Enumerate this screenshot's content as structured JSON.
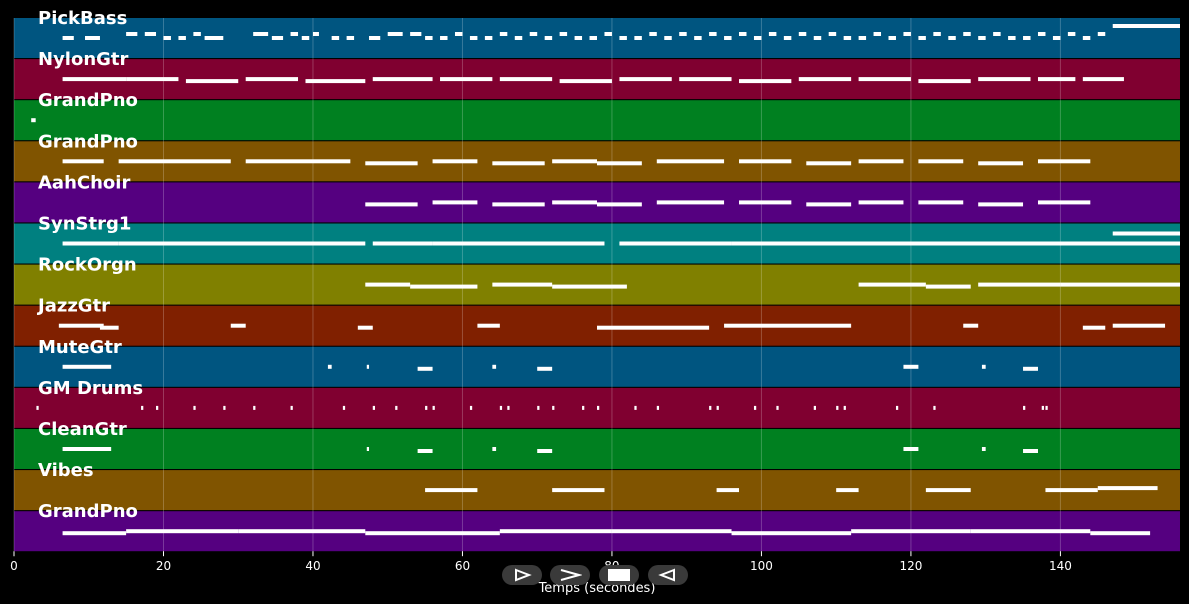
{
  "chart_data": {
    "type": "piano-roll",
    "xlabel": "Temps (secondes)",
    "xlim": [
      0,
      156
    ],
    "x_ticks": [
      0,
      20,
      40,
      60,
      80,
      100,
      120,
      140
    ],
    "grid": true,
    "tracks": [
      {
        "name": "PickBass",
        "color": "#005580",
        "notes": [
          [
            6.5,
            8,
            0.5
          ],
          [
            9.5,
            11.5,
            0.5
          ],
          [
            15,
            16.5,
            0.4
          ],
          [
            17.5,
            19,
            0.4
          ],
          [
            20,
            21,
            0.5
          ],
          [
            22,
            23,
            0.5
          ],
          [
            24,
            25,
            0.4
          ],
          [
            25.5,
            28,
            0.5
          ],
          [
            32,
            34,
            0.4
          ],
          [
            34.5,
            36,
            0.5
          ],
          [
            37,
            38,
            0.4
          ],
          [
            38.5,
            39.5,
            0.5
          ],
          [
            40,
            40.8,
            0.4
          ],
          [
            42.5,
            43.5,
            0.5
          ],
          [
            44.5,
            45.5,
            0.5
          ],
          [
            47.5,
            49,
            0.5
          ],
          [
            50,
            52,
            0.4
          ],
          [
            53,
            54.5,
            0.4
          ],
          [
            55,
            56,
            0.5
          ],
          [
            57,
            58,
            0.5
          ],
          [
            59,
            60,
            0.4
          ],
          [
            61,
            62,
            0.5
          ],
          [
            63,
            64,
            0.5
          ],
          [
            65,
            66,
            0.4
          ],
          [
            67,
            68,
            0.5
          ],
          [
            69,
            70,
            0.4
          ],
          [
            71,
            72,
            0.5
          ],
          [
            73,
            74,
            0.4
          ],
          [
            75,
            76,
            0.5
          ],
          [
            77,
            78,
            0.5
          ],
          [
            79,
            80,
            0.4
          ],
          [
            81,
            82,
            0.5
          ],
          [
            83,
            84,
            0.5
          ],
          [
            85,
            86,
            0.4
          ],
          [
            87,
            88,
            0.5
          ],
          [
            89,
            90,
            0.4
          ],
          [
            91,
            92,
            0.5
          ],
          [
            93,
            94,
            0.4
          ],
          [
            95,
            96,
            0.5
          ],
          [
            97,
            98,
            0.4
          ],
          [
            99,
            100,
            0.5
          ],
          [
            101,
            102,
            0.4
          ],
          [
            103,
            104,
            0.5
          ],
          [
            105,
            106,
            0.4
          ],
          [
            107,
            108,
            0.5
          ],
          [
            109,
            110,
            0.4
          ],
          [
            111,
            112,
            0.5
          ],
          [
            113,
            114,
            0.5
          ],
          [
            115,
            116,
            0.4
          ],
          [
            117,
            118,
            0.5
          ],
          [
            119,
            120,
            0.4
          ],
          [
            121,
            122,
            0.5
          ],
          [
            123,
            124,
            0.4
          ],
          [
            125,
            126,
            0.5
          ],
          [
            127,
            128,
            0.4
          ],
          [
            129,
            130,
            0.5
          ],
          [
            131,
            132,
            0.4
          ],
          [
            133,
            134,
            0.5
          ],
          [
            135,
            136,
            0.5
          ],
          [
            137,
            138,
            0.4
          ],
          [
            139,
            140,
            0.5
          ],
          [
            141,
            142,
            0.4
          ],
          [
            143,
            144,
            0.5
          ],
          [
            145,
            146,
            0.4
          ],
          [
            147,
            156,
            0.2
          ]
        ]
      },
      {
        "name": "NylonGtr",
        "color": "#800030",
        "notes": [
          [
            6.5,
            15,
            0.5
          ],
          [
            15,
            22,
            0.5
          ],
          [
            23,
            30,
            0.55
          ],
          [
            31,
            38,
            0.5
          ],
          [
            39,
            47,
            0.55
          ],
          [
            48,
            56,
            0.5
          ],
          [
            57,
            64,
            0.5
          ],
          [
            65,
            72,
            0.5
          ],
          [
            73,
            80,
            0.55
          ],
          [
            81,
            88,
            0.5
          ],
          [
            89,
            96,
            0.5
          ],
          [
            97,
            104,
            0.55
          ],
          [
            105,
            112,
            0.5
          ],
          [
            113,
            120,
            0.5
          ],
          [
            121,
            128,
            0.55
          ],
          [
            129,
            136,
            0.5
          ],
          [
            137,
            142,
            0.5
          ],
          [
            143,
            148.5,
            0.5
          ]
        ]
      },
      {
        "name": "GrandPno",
        "color": "#008020",
        "notes": [
          [
            2.3,
            2.9,
            0.5
          ]
        ]
      },
      {
        "name": "GrandPno",
        "color": "#805400",
        "notes": [
          [
            6.5,
            12,
            0.5
          ],
          [
            14,
            29,
            0.5
          ],
          [
            31,
            45,
            0.5
          ],
          [
            47,
            54,
            0.55
          ],
          [
            56,
            62,
            0.5
          ],
          [
            64,
            71,
            0.55
          ],
          [
            72,
            78,
            0.5
          ],
          [
            78,
            84,
            0.55
          ],
          [
            86,
            95,
            0.5
          ],
          [
            97,
            104,
            0.5
          ],
          [
            106,
            112,
            0.55
          ],
          [
            113,
            119,
            0.5
          ],
          [
            121,
            127,
            0.5
          ],
          [
            129,
            135,
            0.55
          ],
          [
            137,
            144,
            0.5
          ]
        ]
      },
      {
        "name": "AahChoir",
        "color": "#550080",
        "notes": [
          [
            47,
            54,
            0.55
          ],
          [
            56,
            62,
            0.5
          ],
          [
            64,
            71,
            0.55
          ],
          [
            72,
            78,
            0.5
          ],
          [
            78,
            84,
            0.55
          ],
          [
            86,
            95,
            0.5
          ],
          [
            97,
            104,
            0.5
          ],
          [
            106,
            112,
            0.55
          ],
          [
            113,
            119,
            0.5
          ],
          [
            121,
            127,
            0.5
          ],
          [
            129,
            135,
            0.55
          ],
          [
            137,
            144,
            0.5
          ]
        ]
      },
      {
        "name": "SynStrg1",
        "color": "#008080",
        "notes": [
          [
            6.5,
            14,
            0.5
          ],
          [
            14,
            47,
            0.5
          ],
          [
            48,
            56,
            0.5
          ],
          [
            56,
            79,
            0.5
          ],
          [
            81,
            96,
            0.5
          ],
          [
            96,
            156,
            0.5
          ],
          [
            147,
            156,
            0.25
          ]
        ]
      },
      {
        "name": "RockOrgn",
        "color": "#808000",
        "notes": [
          [
            47,
            53,
            0.5
          ],
          [
            53,
            62,
            0.55
          ],
          [
            64,
            72,
            0.5
          ],
          [
            72,
            82,
            0.55
          ],
          [
            113,
            122,
            0.5
          ],
          [
            122,
            128,
            0.55
          ],
          [
            129,
            140,
            0.5
          ],
          [
            140,
            156,
            0.5
          ]
        ]
      },
      {
        "name": "JazzGtr",
        "color": "#802000",
        "notes": [
          [
            6,
            12,
            0.5
          ],
          [
            11.5,
            14,
            0.55
          ],
          [
            29,
            31,
            0.5
          ],
          [
            46,
            48,
            0.55
          ],
          [
            62,
            65,
            0.5
          ],
          [
            78,
            93,
            0.55
          ],
          [
            95,
            112,
            0.5
          ],
          [
            127,
            129,
            0.5
          ],
          [
            143,
            146,
            0.55
          ],
          [
            147,
            154,
            0.5
          ]
        ]
      },
      {
        "name": "MuteGtr",
        "color": "#005580",
        "notes": [
          [
            6.5,
            13,
            0.5
          ],
          [
            42,
            42.5,
            0.5
          ],
          [
            47.2,
            47.5,
            0.5
          ],
          [
            54,
            56,
            0.55
          ],
          [
            64,
            64.5,
            0.5
          ],
          [
            70,
            72,
            0.55
          ],
          [
            119,
            121,
            0.5
          ],
          [
            129.5,
            130,
            0.5
          ],
          [
            135,
            137,
            0.55
          ]
        ]
      },
      {
        "name": "GM Drums",
        "color": "#800030",
        "notes": [
          [
            3,
            3.3,
            0.5
          ],
          [
            17,
            17.3,
            0.5
          ],
          [
            19,
            19.3,
            0.5
          ],
          [
            24,
            24.3,
            0.5
          ],
          [
            28,
            28.3,
            0.5
          ],
          [
            32,
            32.3,
            0.5
          ],
          [
            37,
            37.3,
            0.5
          ],
          [
            44,
            44.3,
            0.5
          ],
          [
            48,
            48.3,
            0.5
          ],
          [
            51,
            51.3,
            0.5
          ],
          [
            55,
            55.3,
            0.5
          ],
          [
            56,
            56.3,
            0.5
          ],
          [
            61,
            61.3,
            0.5
          ],
          [
            65,
            65.3,
            0.5
          ],
          [
            66,
            66.3,
            0.5
          ],
          [
            70,
            70.3,
            0.5
          ],
          [
            72,
            72.3,
            0.5
          ],
          [
            76,
            76.3,
            0.5
          ],
          [
            78,
            78.3,
            0.5
          ],
          [
            83,
            83.3,
            0.5
          ],
          [
            86,
            86.3,
            0.5
          ],
          [
            93,
            93.3,
            0.5
          ],
          [
            94,
            94.3,
            0.5
          ],
          [
            99,
            99.3,
            0.5
          ],
          [
            102,
            102.3,
            0.5
          ],
          [
            107,
            107.3,
            0.5
          ],
          [
            110,
            110.3,
            0.5
          ],
          [
            111,
            111.3,
            0.5
          ],
          [
            118,
            118.3,
            0.5
          ],
          [
            123,
            123.3,
            0.5
          ],
          [
            135,
            135.3,
            0.5
          ],
          [
            137.5,
            137.8,
            0.5
          ],
          [
            138,
            138.3,
            0.5
          ]
        ]
      },
      {
        "name": "CleanGtr",
        "color": "#008020",
        "notes": [
          [
            6.5,
            13,
            0.5
          ],
          [
            47.2,
            47.5,
            0.5
          ],
          [
            54,
            56,
            0.55
          ],
          [
            64,
            64.5,
            0.5
          ],
          [
            70,
            72,
            0.55
          ],
          [
            119,
            121,
            0.5
          ],
          [
            129.5,
            130,
            0.5
          ],
          [
            135,
            137,
            0.55
          ]
        ]
      },
      {
        "name": "Vibes",
        "color": "#805400",
        "notes": [
          [
            55,
            62,
            0.5
          ],
          [
            72,
            79,
            0.5
          ],
          [
            94,
            97,
            0.5
          ],
          [
            110,
            113,
            0.5
          ],
          [
            122,
            128,
            0.5
          ],
          [
            138,
            145,
            0.5
          ],
          [
            145,
            153,
            0.45
          ]
        ]
      },
      {
        "name": "GrandPno",
        "color": "#550080",
        "notes": [
          [
            6.5,
            15,
            0.55
          ],
          [
            15,
            30,
            0.5
          ],
          [
            30,
            47,
            0.5
          ],
          [
            47,
            65,
            0.55
          ],
          [
            65,
            80,
            0.5
          ],
          [
            80,
            96,
            0.5
          ],
          [
            96,
            112,
            0.55
          ],
          [
            112,
            128,
            0.5
          ],
          [
            128,
            144,
            0.5
          ],
          [
            144,
            152,
            0.55
          ]
        ]
      }
    ]
  },
  "controls": [
    {
      "name": "play-button",
      "icon": "play-outline-icon"
    },
    {
      "name": "forward-button",
      "icon": "chevron-right-icon"
    },
    {
      "name": "stop-button",
      "icon": "stop-icon"
    },
    {
      "name": "reverse-button",
      "icon": "reverse-triangle-icon"
    }
  ]
}
